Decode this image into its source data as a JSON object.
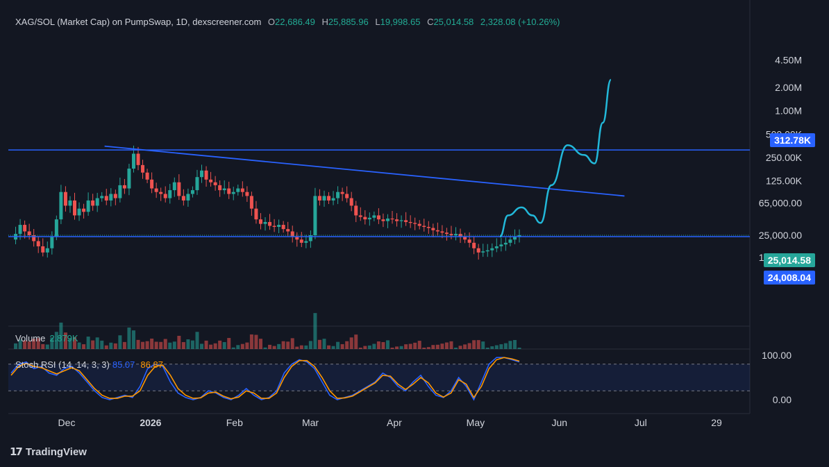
{
  "header": {
    "symbol": "XAG/SOL (Market Cap) on PumpSwap, 1D, dexscreener.com",
    "o_label": "O",
    "o_value": "22,686.49",
    "h_label": "H",
    "h_value": "25,885.96",
    "l_label": "L",
    "l_value": "19,998.65",
    "c_label": "C",
    "c_value": "25,014.58",
    "change": "2,328.08 (+10.26%)"
  },
  "volume": {
    "label": "Volume",
    "value": "2.879K"
  },
  "stoch_rsi": {
    "label": "Stoch RSI (14, 14, 3, 3)",
    "k_value": "85.07",
    "d_value": "86.87",
    "ticks": [
      "100.00",
      "0.00"
    ]
  },
  "badges": {
    "resistance": "312.78K",
    "last_price": "25,014.58",
    "support": "24,008.04"
  },
  "branding": {
    "logo_mark": "17",
    "name": "TradingView"
  },
  "colors": {
    "background": "#131722",
    "up": "#26a69a",
    "down": "#ef5350",
    "horizontal_line": "#2962ff",
    "projection": "#22b8d9",
    "stoch_k": "#2962ff",
    "stoch_d": "#ff9800",
    "last_price_badge": "#26a69a",
    "line_badge": "#2962ff"
  },
  "chart_data": {
    "type": "candlestick",
    "y_scale": "log",
    "y_tick_labels": [
      "4.50M",
      "2.00M",
      "1.00M",
      "500.00K",
      "250.00K",
      "125.00K",
      "65,000.00",
      "25,000.00",
      "13,000.00"
    ],
    "x_tick_labels": [
      "Dec",
      "2026",
      "Feb",
      "Mar",
      "Apr",
      "May",
      "Jun",
      "Jul",
      "29"
    ],
    "horizontal_lines": [
      312780,
      24008.04
    ],
    "trend_line": {
      "from": [
        "2025-12-15",
        350000
      ],
      "to": [
        "2026-06-25",
        80000
      ]
    },
    "projection_path": [
      [
        "2026-05-10",
        24000
      ],
      [
        "2026-05-13",
        45000
      ],
      [
        "2026-05-18",
        57000
      ],
      [
        "2026-05-22",
        45000
      ],
      [
        "2026-05-25",
        36000
      ],
      [
        "2026-05-29",
        110000
      ],
      [
        "2026-06-04",
        360000
      ],
      [
        "2026-06-10",
        270000
      ],
      [
        "2026-06-14",
        210000
      ],
      [
        "2026-06-17",
        700000
      ],
      [
        "2026-06-20",
        2500000
      ]
    ],
    "ohlc_series": [
      22000,
      26000,
      34000,
      28000,
      25000,
      21000,
      18000,
      15000,
      17000,
      24000,
      40000,
      90000,
      60000,
      70000,
      45000,
      55000,
      50000,
      70000,
      60000,
      75000,
      80000,
      70000,
      85000,
      75000,
      110000,
      100000,
      180000,
      280000,
      200000,
      160000,
      130000,
      100000,
      90000,
      85000,
      75000,
      95000,
      120000,
      80000,
      70000,
      85000,
      95000,
      140000,
      170000,
      130000,
      120000,
      110000,
      95000,
      100000,
      85000,
      90000,
      100000,
      90000,
      80000,
      55000,
      40000,
      35000,
      37000,
      33000,
      32000,
      34000,
      30000,
      28000,
      24000,
      22000,
      20000,
      21000,
      25000,
      80000,
      70000,
      80000,
      70000,
      75000,
      90000,
      85000,
      75000,
      60000,
      45000,
      43000,
      40000,
      42000,
      45000,
      40000,
      38000,
      41000,
      40000,
      38000,
      39000,
      37000,
      36000,
      35000,
      33000,
      32000,
      31000,
      29000,
      28000,
      27000,
      26000,
      25000,
      26000,
      24000,
      22000,
      20000,
      17000,
      15000,
      15500,
      16000,
      17000,
      18000,
      19000,
      20000,
      22000,
      24000,
      25014.58
    ],
    "stoch_k_series": [
      60,
      80,
      85,
      70,
      75,
      60,
      55,
      70,
      75,
      60,
      40,
      20,
      5,
      0,
      5,
      10,
      5,
      30,
      70,
      80,
      75,
      40,
      15,
      5,
      0,
      5,
      20,
      15,
      5,
      0,
      10,
      25,
      10,
      0,
      5,
      20,
      60,
      80,
      90,
      85,
      70,
      40,
      10,
      0,
      5,
      10,
      20,
      30,
      40,
      60,
      50,
      30,
      20,
      40,
      55,
      30,
      10,
      5,
      20,
      50,
      30,
      0,
      40,
      80,
      95,
      95,
      90,
      85.07
    ],
    "stoch_d_series": [
      55,
      75,
      82,
      75,
      72,
      65,
      58,
      65,
      72,
      65,
      45,
      25,
      10,
      3,
      3,
      8,
      8,
      20,
      55,
      75,
      78,
      55,
      25,
      10,
      3,
      4,
      15,
      17,
      8,
      2,
      6,
      20,
      15,
      3,
      3,
      15,
      50,
      75,
      88,
      88,
      75,
      50,
      20,
      3,
      4,
      8,
      18,
      28,
      38,
      55,
      53,
      35,
      23,
      35,
      50,
      38,
      15,
      6,
      15,
      45,
      35,
      5,
      30,
      70,
      90,
      95,
      92,
      86.87
    ]
  }
}
